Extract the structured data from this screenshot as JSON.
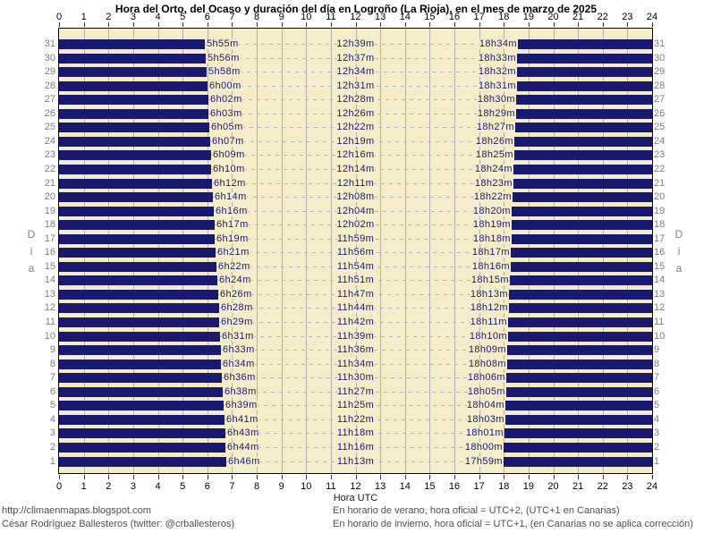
{
  "title": "Hora del Orto, del Ocaso y duración del día en Logroño (La Rioja), en el mes de marzo de 2025",
  "axis": {
    "hours": [
      0,
      1,
      2,
      3,
      4,
      5,
      6,
      7,
      8,
      9,
      10,
      11,
      12,
      13,
      14,
      15,
      16,
      17,
      18,
      19,
      20,
      21,
      22,
      23,
      24
    ],
    "x_label": "Hora UTC",
    "y_label": "Día"
  },
  "footer": {
    "left_line1": "http://climaenmapas.blogspot.com",
    "left_line2": "César Rodríguez Ballesteros (twitter: @crballesteros)",
    "right_line1": "En horario de verano, hora oficial = UTC+2, (UTC+1 en Canarias)",
    "right_line2": "En horario de invierno, hora oficial = UTC+1, (en Canarias no se aplica corrección)"
  },
  "colors": {
    "night": "#191970",
    "day": "#F5EDC9",
    "grid": "#b0b0b0",
    "dash": "#b5b5bd",
    "label_text": "#191970",
    "day_number": "#7d7d7d",
    "footer_text": "#4f4f4f"
  },
  "chart_data": {
    "type": "bar",
    "orientation": "horizontal",
    "title": "Hora del Orto, del Ocaso y duración del día en Logroño (La Rioja), en el mes de marzo de 2025",
    "xlabel": "Hora UTC",
    "ylabel": "Día",
    "xlim": [
      0,
      24
    ],
    "grid": true,
    "categories": [
      31,
      30,
      29,
      28,
      27,
      26,
      25,
      24,
      23,
      22,
      21,
      20,
      19,
      18,
      17,
      16,
      15,
      14,
      13,
      12,
      11,
      10,
      9,
      8,
      7,
      6,
      5,
      4,
      3,
      2,
      1
    ],
    "series": [
      {
        "name": "orto",
        "values": [
          "5h55m",
          "5h56m",
          "5h58m",
          "6h00m",
          "6h02m",
          "6h03m",
          "6h05m",
          "6h07m",
          "6h09m",
          "6h10m",
          "6h12m",
          "6h14m",
          "6h16m",
          "6h17m",
          "6h19m",
          "6h21m",
          "6h22m",
          "6h24m",
          "6h26m",
          "6h28m",
          "6h29m",
          "6h31m",
          "6h33m",
          "6h34m",
          "6h36m",
          "6h38m",
          "6h39m",
          "6h41m",
          "6h43m",
          "6h44m",
          "6h46m"
        ]
      },
      {
        "name": "duración del día",
        "values": [
          "12h39m",
          "12h37m",
          "12h34m",
          "12h31m",
          "12h28m",
          "12h26m",
          "12h22m",
          "12h19m",
          "12h16m",
          "12h14m",
          "12h11m",
          "12h08m",
          "12h04m",
          "12h02m",
          "11h59m",
          "11h56m",
          "11h54m",
          "11h51m",
          "11h47m",
          "11h44m",
          "11h42m",
          "11h39m",
          "11h36m",
          "11h34m",
          "11h30m",
          "11h27m",
          "11h25m",
          "11h22m",
          "11h18m",
          "11h16m",
          "11h13m"
        ]
      },
      {
        "name": "ocaso",
        "values": [
          "18h34m",
          "18h33m",
          "18h32m",
          "18h31m",
          "18h30m",
          "18h29m",
          "18h27m",
          "18h26m",
          "18h25m",
          "18h24m",
          "18h23m",
          "18h22m",
          "18h20m",
          "18h19m",
          "18h18m",
          "18h17m",
          "18h16m",
          "18h15m",
          "18h13m",
          "18h12m",
          "18h11m",
          "18h10m",
          "18h09m",
          "18h08m",
          "18h06m",
          "18h05m",
          "18h04m",
          "18h03m",
          "18h01m",
          "18h00m",
          "17h59m"
        ]
      }
    ]
  }
}
